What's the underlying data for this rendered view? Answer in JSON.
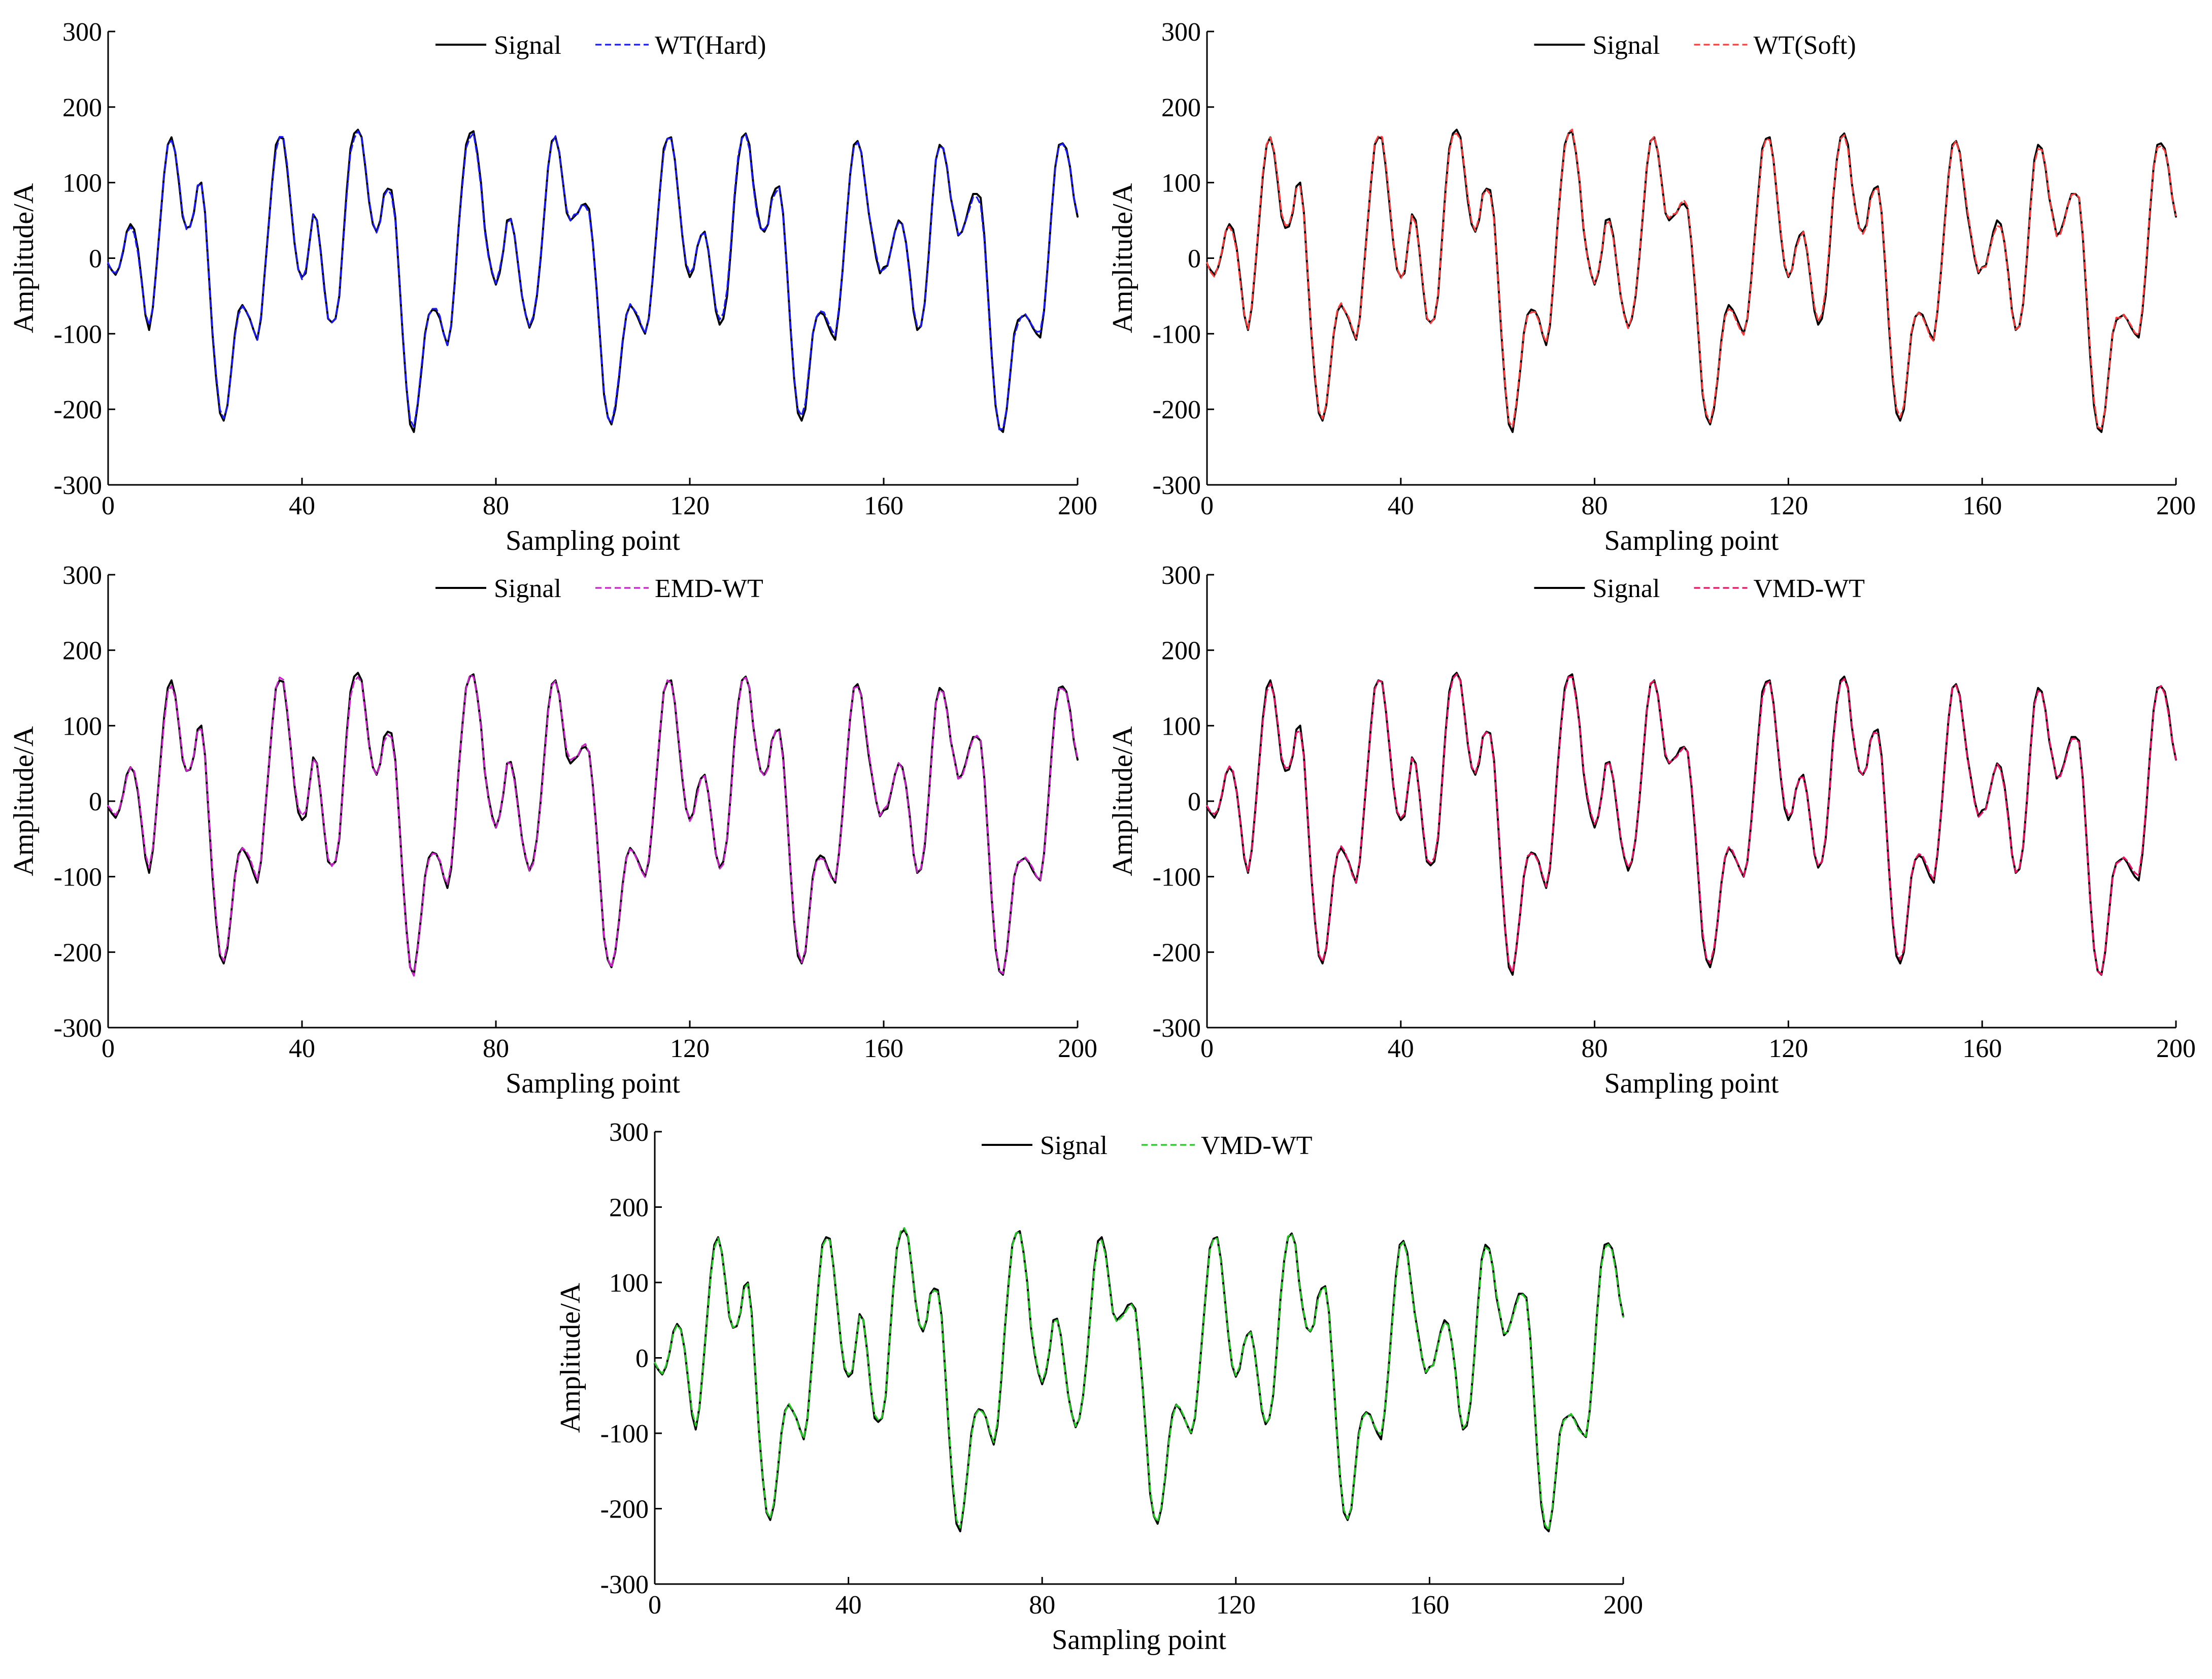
{
  "signal_y": [
    -8,
    -16,
    -22,
    -12,
    8,
    35,
    45,
    38,
    12,
    -30,
    -75,
    -95,
    -65,
    -10,
    50,
    110,
    150,
    160,
    140,
    100,
    55,
    40,
    42,
    60,
    95,
    100,
    60,
    -20,
    -100,
    -160,
    -205,
    -215,
    -195,
    -150,
    -100,
    -70,
    -62,
    -70,
    -80,
    -95,
    -108,
    -80,
    -20,
    40,
    100,
    150,
    160,
    158,
    120,
    70,
    20,
    -15,
    -25,
    -20,
    20,
    58,
    50,
    10,
    -40,
    -80,
    -85,
    -80,
    -50,
    20,
    90,
    145,
    165,
    170,
    160,
    120,
    75,
    45,
    35,
    50,
    85,
    92,
    90,
    55,
    -20,
    -100,
    -170,
    -220,
    -230,
    -195,
    -150,
    -100,
    -75,
    -68,
    -70,
    -80,
    -100,
    -115,
    -90,
    -30,
    40,
    100,
    150,
    165,
    168,
    140,
    100,
    40,
    5,
    -20,
    -35,
    -20,
    10,
    50,
    52,
    30,
    -10,
    -50,
    -75,
    -92,
    -80,
    -50,
    0,
    60,
    120,
    155,
    160,
    140,
    100,
    60,
    50,
    55,
    60,
    70,
    72,
    65,
    20,
    -40,
    -110,
    -180,
    -210,
    -220,
    -200,
    -160,
    -110,
    -75,
    -62,
    -68,
    -78,
    -90,
    -100,
    -80,
    -30,
    30,
    90,
    145,
    158,
    160,
    130,
    80,
    30,
    -10,
    -25,
    -15,
    15,
    30,
    35,
    10,
    -30,
    -70,
    -88,
    -80,
    -50,
    10,
    80,
    130,
    160,
    165,
    150,
    100,
    65,
    40,
    35,
    45,
    80,
    92,
    95,
    60,
    -10,
    -90,
    -160,
    -205,
    -215,
    -200,
    -150,
    -100,
    -78,
    -72,
    -75,
    -88,
    -100,
    -108,
    -70,
    -15,
    50,
    110,
    150,
    155,
    140,
    100,
    60,
    30,
    0,
    -20,
    -12,
    -10,
    12,
    35,
    50,
    45,
    20,
    -20,
    -70,
    -95,
    -90,
    -60,
    0,
    70,
    130,
    150,
    145,
    120,
    80,
    55,
    30,
    35,
    50,
    70,
    85,
    85,
    80,
    30,
    -50,
    -130,
    -195,
    -225,
    -230,
    -200,
    -150,
    -100,
    -82,
    -78,
    -75,
    -82,
    -92,
    -100,
    -105,
    -70,
    -10,
    60,
    120,
    150,
    152,
    145,
    120,
    80,
    55
  ],
  "chart_data": [
    {
      "type": "line",
      "xlabel": "Sampling point",
      "ylabel": "Amplitude/A",
      "xlim": [
        0,
        200
      ],
      "ylim": [
        -300,
        300
      ],
      "xticks": [
        "0",
        "40",
        "80",
        "120",
        "160",
        "200"
      ],
      "yticks": [
        "-300",
        "-200",
        "-100",
        "0",
        "100",
        "200",
        "300"
      ],
      "legend_placement": "top-center",
      "series": [
        {
          "name": "Signal",
          "color": "#000000",
          "style": "solid"
        },
        {
          "name": "WT(Hard)",
          "color": "#1a1aff",
          "style": "dashed",
          "deviation": 9
        }
      ]
    },
    {
      "type": "line",
      "xlabel": "Sampling point",
      "ylabel": "Amplitude/A",
      "xlim": [
        0,
        200
      ],
      "ylim": [
        -300,
        300
      ],
      "xticks": [
        "0",
        "40",
        "80",
        "120",
        "160",
        "200"
      ],
      "yticks": [
        "-300",
        "-200",
        "-100",
        "0",
        "100",
        "200",
        "300"
      ],
      "legend_placement": "top-center",
      "series": [
        {
          "name": "Signal",
          "color": "#000000",
          "style": "solid"
        },
        {
          "name": "WT(Soft)",
          "color": "#ff3b3b",
          "style": "dashed",
          "deviation": 8
        }
      ]
    },
    {
      "type": "line",
      "xlabel": "Sampling point",
      "ylabel": "Amplitude/A",
      "xlim": [
        0,
        200
      ],
      "ylim": [
        -300,
        300
      ],
      "xticks": [
        "0",
        "40",
        "80",
        "120",
        "160",
        "200"
      ],
      "yticks": [
        "-300",
        "-200",
        "-100",
        "0",
        "100",
        "200",
        "300"
      ],
      "legend_placement": "top-center",
      "series": [
        {
          "name": "Signal",
          "color": "#000000",
          "style": "solid"
        },
        {
          "name": "EMD-WT",
          "color": "#cc22cc",
          "style": "dashed",
          "deviation": 7
        }
      ]
    },
    {
      "type": "line",
      "xlabel": "Sampling point",
      "ylabel": "Amplitude/A",
      "xlim": [
        0,
        200
      ],
      "ylim": [
        -300,
        300
      ],
      "xticks": [
        "0",
        "40",
        "80",
        "120",
        "160",
        "200"
      ],
      "yticks": [
        "-300",
        "-200",
        "-100",
        "0",
        "100",
        "200",
        "300"
      ],
      "legend_placement": "top-center",
      "series": [
        {
          "name": "Signal",
          "color": "#000000",
          "style": "solid"
        },
        {
          "name": "VMD-WT",
          "color": "#ee1166",
          "style": "dashed",
          "deviation": 6
        }
      ]
    },
    {
      "type": "line",
      "xlabel": "Sampling point",
      "ylabel": "Amplitude/A",
      "xlim": [
        0,
        200
      ],
      "ylim": [
        -300,
        300
      ],
      "xticks": [
        "0",
        "40",
        "80",
        "120",
        "160",
        "200"
      ],
      "yticks": [
        "-300",
        "-200",
        "-100",
        "0",
        "100",
        "200",
        "300"
      ],
      "legend_placement": "top-center",
      "series": [
        {
          "name": "Signal",
          "color": "#000000",
          "style": "solid"
        },
        {
          "name": "VMD-WT",
          "color": "#22cc22",
          "style": "dashed",
          "deviation": 5
        }
      ]
    }
  ]
}
